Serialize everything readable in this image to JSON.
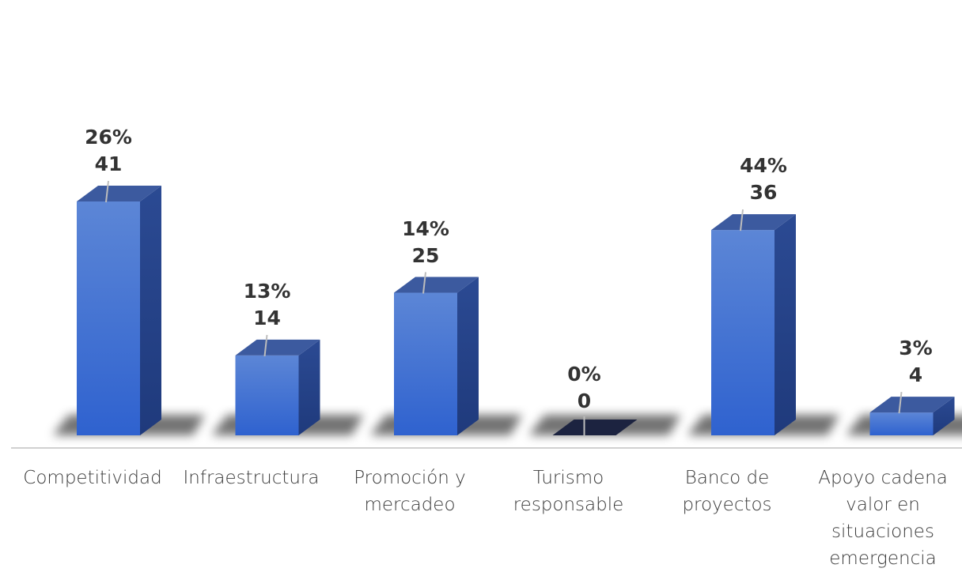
{
  "chart_data": {
    "type": "bar",
    "style": "3d-column",
    "categories": [
      "Competitividad",
      "Infraestructura",
      "Promoción y\nmercadeo",
      "Turismo\nresponsable",
      "Banco de\nproyectos",
      "Apoyo cadena\nvalor en\nsituaciones\nemergencia"
    ],
    "values": [
      41,
      14,
      25,
      0,
      36,
      4
    ],
    "percentages": [
      "26%",
      "13%",
      "14%",
      "0%",
      "44%",
      "3%"
    ],
    "title": "",
    "xlabel": "",
    "ylabel": "",
    "ylim": [
      0,
      41
    ],
    "grid": false,
    "legend": "none",
    "colors": {
      "bar_front": "#3a6fd0",
      "bar_front_top": "#5b86d8",
      "bar_side": "#253f86",
      "bar_top": "#3c5a9f",
      "zero_bar": "#1c2340",
      "label": "#333333",
      "axis": "#d0d0d0"
    }
  }
}
